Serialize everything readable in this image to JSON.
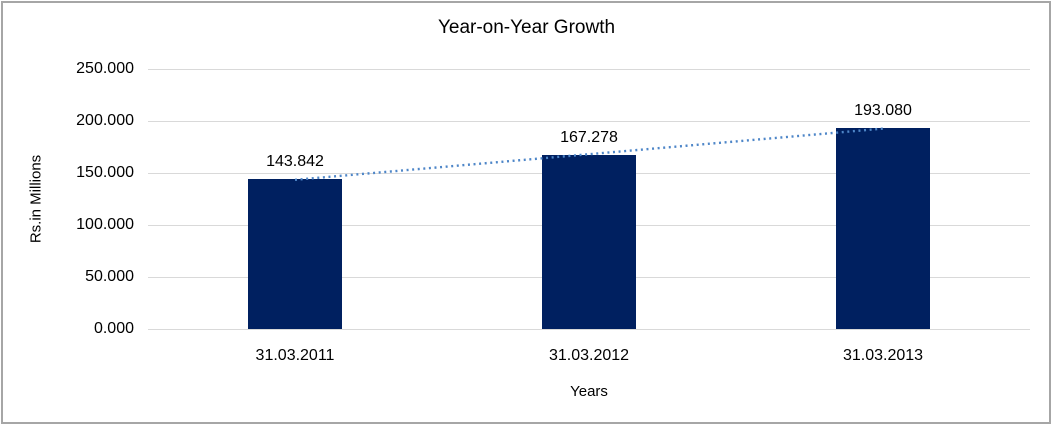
{
  "window": {
    "background": "#ffffff",
    "frame_border_color": "#a6a6a6"
  },
  "chart_data": {
    "type": "bar",
    "title": "Year-on-Year Growth",
    "xlabel": "Years",
    "ylabel": "Rs.in Millions",
    "categories": [
      "31.03.2011",
      "31.03.2012",
      "31.03.2013"
    ],
    "values": [
      143.842,
      167.278,
      193.08
    ],
    "value_labels": [
      "143.842",
      "167.278",
      "193.080"
    ],
    "ylim": [
      0,
      250
    ],
    "yticks": [
      0,
      50,
      100,
      150,
      200,
      250
    ],
    "ytick_labels": [
      "0.000",
      "50.000",
      "100.000",
      "150.000",
      "200.000",
      "250.000"
    ],
    "grid": true,
    "legend": "none",
    "bar_color": "#002060",
    "gridline_color": "#d9d9d9",
    "text_color": "#000000",
    "trendline": {
      "type": "linear",
      "style": "dotted",
      "color": "#4e86c8"
    }
  }
}
